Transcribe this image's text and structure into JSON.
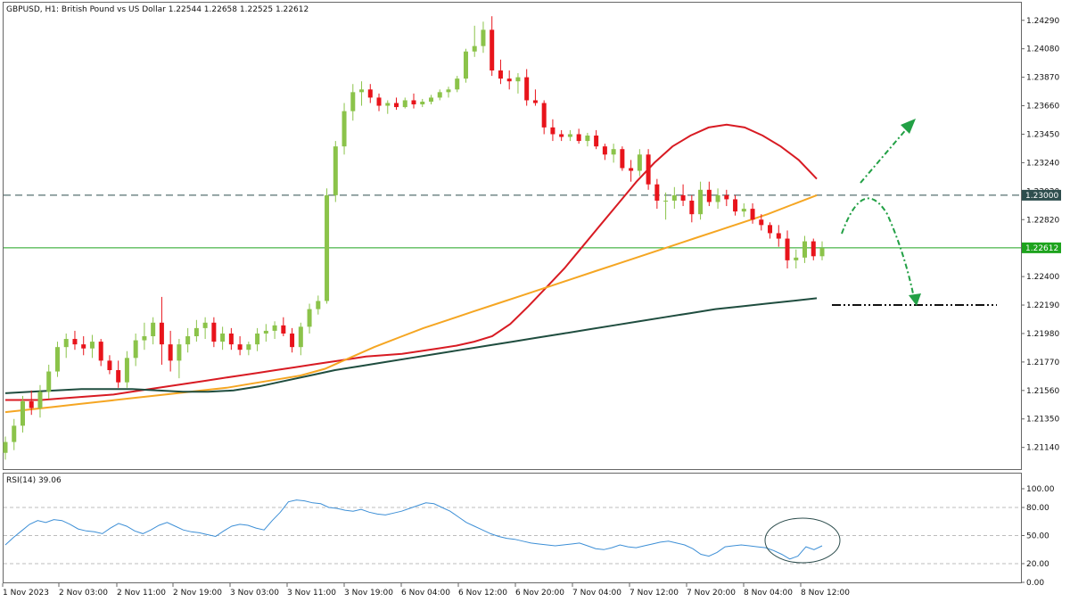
{
  "header": {
    "symbol_line": "GBPUSD, H1:  British Pound vs US Dollar  1.22544 1.22658 1.22525 1.22612"
  },
  "colors": {
    "bull": "#8bc34a",
    "bear": "#e8141b",
    "ma_fast": "#d81b23",
    "ma_mid": "#f5a623",
    "ma_slow": "#1f4d3f",
    "rsi": "#3d8fd6",
    "resistance": "#2e4e4e",
    "current": "#1da31d",
    "support": "#111111",
    "arrows": "#22a045"
  },
  "price_axis": {
    "ticks": [
      "1.24290",
      "1.24080",
      "1.23870",
      "1.23660",
      "1.23450",
      "1.23240",
      "1.23030",
      "1.22820",
      "1.22610",
      "1.22400",
      "1.22190",
      "1.21980",
      "1.21770",
      "1.21560",
      "1.21350",
      "1.21140"
    ],
    "tick_values": [
      1.2429,
      1.2408,
      1.2387,
      1.2366,
      1.2345,
      1.2324,
      1.2303,
      1.2282,
      1.2261,
      1.224,
      1.2219,
      1.2198,
      1.2177,
      1.2156,
      1.2135,
      1.2114
    ],
    "level_resistance_label": "1.23000",
    "level_current_label": "1.22612"
  },
  "time_axis": {
    "labels": [
      "1 Nov 2023",
      "2 Nov 03:00",
      "2 Nov 11:00",
      "2 Nov 19:00",
      "3 Nov 03:00",
      "3 Nov 11:00",
      "3 Nov 19:00",
      "6 Nov 04:00",
      "6 Nov 12:00",
      "6 Nov 20:00",
      "7 Nov 04:00",
      "7 Nov 12:00",
      "7 Nov 20:00",
      "8 Nov 04:00",
      "8 Nov 12:00"
    ]
  },
  "rsi_panel": {
    "title": "RSI(14) 39.06",
    "ticks": [
      "100.00",
      "80.00",
      "50.00",
      "20.00",
      "0.00"
    ],
    "tick_values": [
      100,
      80,
      50,
      20,
      0
    ]
  },
  "chart_data": {
    "type": "candlestick",
    "title": "GBPUSD, H1: British Pound vs US Dollar",
    "ylim": [
      1.2098,
      1.2442
    ],
    "levels": {
      "resistance": 1.23,
      "current": 1.22612,
      "support": 1.2219
    },
    "candles": [
      [
        1.211,
        1.2122,
        1.2105,
        1.2118
      ],
      [
        1.2118,
        1.2135,
        1.2112,
        1.213
      ],
      [
        1.213,
        1.2152,
        1.2125,
        1.2148
      ],
      [
        1.2148,
        1.2156,
        1.2138,
        1.2143
      ],
      [
        1.2143,
        1.216,
        1.2136,
        1.2155
      ],
      [
        1.2155,
        1.2175,
        1.215,
        1.217
      ],
      [
        1.217,
        1.2192,
        1.2166,
        1.2188
      ],
      [
        1.2188,
        1.2198,
        1.218,
        1.2194
      ],
      [
        1.2194,
        1.22,
        1.2186,
        1.219
      ],
      [
        1.219,
        1.2196,
        1.2182,
        1.2187
      ],
      [
        1.2187,
        1.2197,
        1.218,
        1.2192
      ],
      [
        1.2192,
        1.2194,
        1.2174,
        1.2178
      ],
      [
        1.2178,
        1.2182,
        1.2168,
        1.2171
      ],
      [
        1.2171,
        1.2178,
        1.2158,
        1.2162
      ],
      [
        1.2162,
        1.2185,
        1.2158,
        1.218
      ],
      [
        1.218,
        1.2198,
        1.2174,
        1.2193
      ],
      [
        1.2193,
        1.2206,
        1.2186,
        1.2196
      ],
      [
        1.2196,
        1.221,
        1.219,
        1.2206
      ],
      [
        1.2206,
        1.2225,
        1.2175,
        1.219
      ],
      [
        1.219,
        1.22,
        1.217,
        1.2178
      ],
      [
        1.2178,
        1.2194,
        1.2165,
        1.219
      ],
      [
        1.219,
        1.2202,
        1.2184,
        1.2196
      ],
      [
        1.2196,
        1.2208,
        1.2192,
        1.2202
      ],
      [
        1.2202,
        1.221,
        1.2194,
        1.2206
      ],
      [
        1.2206,
        1.221,
        1.2188,
        1.2192
      ],
      [
        1.2192,
        1.2203,
        1.2186,
        1.2198
      ],
      [
        1.2198,
        1.2202,
        1.2186,
        1.219
      ],
      [
        1.219,
        1.2196,
        1.2182,
        1.2186
      ],
      [
        1.2186,
        1.2192,
        1.2182,
        1.219
      ],
      [
        1.219,
        1.2202,
        1.2185,
        1.2198
      ],
      [
        1.2198,
        1.2205,
        1.2192,
        1.22
      ],
      [
        1.22,
        1.2207,
        1.2194,
        1.2204
      ],
      [
        1.2204,
        1.221,
        1.2196,
        1.2198
      ],
      [
        1.2198,
        1.2202,
        1.2184,
        1.2188
      ],
      [
        1.2188,
        1.2206,
        1.2182,
        1.2203
      ],
      [
        1.2203,
        1.222,
        1.2198,
        1.2216
      ],
      [
        1.2216,
        1.2226,
        1.2212,
        1.2222
      ],
      [
        1.2222,
        1.2305,
        1.222,
        1.23
      ],
      [
        1.23,
        1.234,
        1.2295,
        1.2336
      ],
      [
        1.2336,
        1.2368,
        1.233,
        1.2362
      ],
      [
        1.2362,
        1.2382,
        1.2355,
        1.2376
      ],
      [
        1.2376,
        1.2384,
        1.2366,
        1.2378
      ],
      [
        1.2378,
        1.2382,
        1.2368,
        1.2372
      ],
      [
        1.2372,
        1.2375,
        1.2362,
        1.2366
      ],
      [
        1.2366,
        1.237,
        1.236,
        1.2368
      ],
      [
        1.2368,
        1.2372,
        1.2363,
        1.2365
      ],
      [
        1.2365,
        1.2372,
        1.2364,
        1.237
      ],
      [
        1.237,
        1.2375,
        1.2364,
        1.2367
      ],
      [
        1.2367,
        1.2371,
        1.2365,
        1.2369
      ],
      [
        1.2369,
        1.2374,
        1.2367,
        1.2372
      ],
      [
        1.2372,
        1.2378,
        1.237,
        1.2376
      ],
      [
        1.2376,
        1.238,
        1.2372,
        1.2378
      ],
      [
        1.2378,
        1.2388,
        1.2376,
        1.2386
      ],
      [
        1.2386,
        1.2408,
        1.2383,
        1.2406
      ],
      [
        1.2406,
        1.2425,
        1.2402,
        1.241
      ],
      [
        1.241,
        1.2428,
        1.2405,
        1.2422
      ],
      [
        1.2422,
        1.2432,
        1.2388,
        1.2392
      ],
      [
        1.2392,
        1.24,
        1.2382,
        1.2386
      ],
      [
        1.2386,
        1.2392,
        1.2378,
        1.2384
      ],
      [
        1.2384,
        1.239,
        1.2375,
        1.2387
      ],
      [
        1.2387,
        1.2393,
        1.2366,
        1.237
      ],
      [
        1.237,
        1.2378,
        1.2366,
        1.2368
      ],
      [
        1.2368,
        1.237,
        1.2345,
        1.235
      ],
      [
        1.235,
        1.2356,
        1.234,
        1.2345
      ],
      [
        1.2345,
        1.2348,
        1.234,
        1.2343
      ],
      [
        1.2343,
        1.2348,
        1.234,
        1.2345
      ],
      [
        1.2345,
        1.2349,
        1.2338,
        1.234
      ],
      [
        1.234,
        1.2346,
        1.2336,
        1.2344
      ],
      [
        1.2344,
        1.2348,
        1.2334,
        1.2336
      ],
      [
        1.2336,
        1.2338,
        1.2326,
        1.233
      ],
      [
        1.233,
        1.2338,
        1.2324,
        1.2334
      ],
      [
        1.2334,
        1.2336,
        1.2318,
        1.232
      ],
      [
        1.232,
        1.2326,
        1.231,
        1.2318
      ],
      [
        1.2318,
        1.2334,
        1.2314,
        1.233
      ],
      [
        1.233,
        1.2334,
        1.2304,
        1.2308
      ],
      [
        1.2308,
        1.2312,
        1.229,
        1.2296
      ],
      [
        1.2296,
        1.2302,
        1.2282,
        1.2296
      ],
      [
        1.2296,
        1.2306,
        1.229,
        1.23
      ],
      [
        1.23,
        1.2308,
        1.2292,
        1.2296
      ],
      [
        1.2296,
        1.23,
        1.228,
        1.2286
      ],
      [
        1.2286,
        1.231,
        1.2282,
        1.2304
      ],
      [
        1.2304,
        1.231,
        1.2292,
        1.2295
      ],
      [
        1.2295,
        1.2305,
        1.229,
        1.23
      ],
      [
        1.23,
        1.2304,
        1.2292,
        1.2297
      ],
      [
        1.2297,
        1.23,
        1.2285,
        1.2288
      ],
      [
        1.2288,
        1.2294,
        1.2284,
        1.229
      ],
      [
        1.229,
        1.2294,
        1.2279,
        1.2282
      ],
      [
        1.2282,
        1.2286,
        1.2274,
        1.2278
      ],
      [
        1.2278,
        1.228,
        1.2268,
        1.2272
      ],
      [
        1.2272,
        1.2278,
        1.2262,
        1.2268
      ],
      [
        1.2268,
        1.2274,
        1.2246,
        1.2252
      ],
      [
        1.2252,
        1.226,
        1.2246,
        1.2254
      ],
      [
        1.2254,
        1.227,
        1.225,
        1.2266
      ],
      [
        1.2266,
        1.2268,
        1.2252,
        1.2255
      ],
      [
        1.2255,
        1.2266,
        1.2252,
        1.2261
      ]
    ],
    "series": [
      {
        "name": "MA fast",
        "color_key": "ma_fast",
        "values": [
          1.2149,
          1.2149,
          1.2149,
          1.215,
          1.2151,
          1.2152,
          1.2153,
          1.2155,
          1.2157,
          1.2159,
          1.2161,
          1.2163,
          1.2165,
          1.2167,
          1.2169,
          1.2171,
          1.2173,
          1.2175,
          1.2177,
          1.2179,
          1.2181,
          1.2182,
          1.2183,
          1.2185,
          1.2187,
          1.2189,
          1.2192,
          1.2196,
          1.2205,
          1.2218,
          1.2232,
          1.2246,
          1.2262,
          1.2278,
          1.2294,
          1.231,
          1.2324,
          1.2336,
          1.2344,
          1.235,
          1.2352,
          1.235,
          1.2344,
          1.2336,
          1.2326,
          1.2312
        ]
      },
      {
        "name": "MA mid",
        "color_key": "ma_mid",
        "values": [
          1.214,
          1.2142,
          1.2144,
          1.2146,
          1.2148,
          1.215,
          1.2152,
          1.2154,
          1.2156,
          1.2158,
          1.2161,
          1.2164,
          1.2167,
          1.2172,
          1.218,
          1.2188,
          1.2195,
          1.2202,
          1.2208,
          1.2214,
          1.222,
          1.2226,
          1.2232,
          1.2238,
          1.2244,
          1.225,
          1.2256,
          1.2262,
          1.2268,
          1.2274,
          1.228,
          1.2286,
          1.2293,
          1.23
        ]
      },
      {
        "name": "MA slow",
        "color_key": "ma_slow",
        "values": [
          1.2154,
          1.2155,
          1.2156,
          1.2157,
          1.2157,
          1.2157,
          1.2156,
          1.2155,
          1.2155,
          1.2156,
          1.2159,
          1.2163,
          1.2167,
          1.2171,
          1.2174,
          1.2177,
          1.218,
          1.2183,
          1.2186,
          1.2189,
          1.2192,
          1.2195,
          1.2198,
          1.2201,
          1.2204,
          1.2207,
          1.221,
          1.2213,
          1.2216,
          1.2218,
          1.222,
          1.2222,
          1.2224
        ]
      }
    ],
    "rsi": {
      "name": "RSI(14)",
      "ylim": [
        0,
        100
      ],
      "values": [
        40,
        48,
        55,
        62,
        66,
        64,
        67,
        66,
        62,
        57,
        55,
        54,
        52,
        58,
        63,
        60,
        55,
        52,
        56,
        61,
        64,
        60,
        56,
        54,
        53,
        51,
        49,
        55,
        60,
        62,
        61,
        58,
        56,
        66,
        75,
        86,
        88,
        87,
        85,
        84,
        80,
        79,
        77,
        76,
        78,
        75,
        73,
        72,
        74,
        76,
        79,
        82,
        85,
        84,
        80,
        76,
        70,
        64,
        60,
        56,
        52,
        49,
        47,
        46,
        44,
        42,
        41,
        40,
        39,
        40,
        41,
        42,
        39,
        36,
        35,
        37,
        40,
        38,
        37,
        39,
        41,
        43,
        44,
        42,
        40,
        36,
        30,
        28,
        32,
        38,
        39,
        40,
        39,
        38,
        37,
        34,
        30,
        25,
        28,
        38,
        35,
        39
      ]
    }
  }
}
